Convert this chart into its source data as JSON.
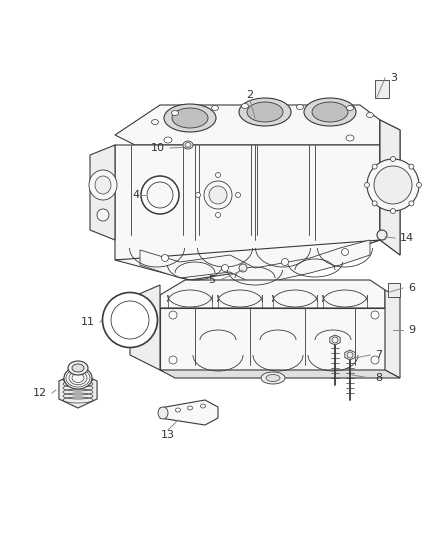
{
  "background_color": "#ffffff",
  "line_color": "#3a3a3a",
  "label_color": "#333333",
  "leader_color": "#888888",
  "figsize": [
    4.38,
    5.33
  ],
  "dpi": 100,
  "face_light": "#f8f8f8",
  "face_mid": "#eeeeee",
  "face_dark": "#e0e0e0",
  "bore_fill": "#d8d8d8",
  "bore_inner": "#c0c0c0"
}
